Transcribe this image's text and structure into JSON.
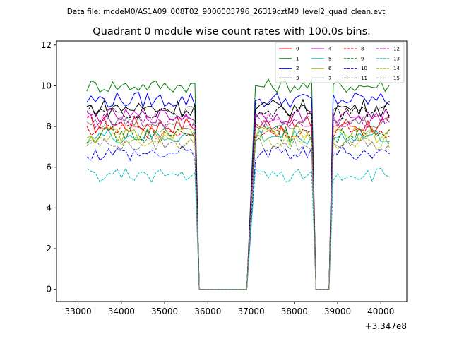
{
  "chart_data": {
    "type": "line",
    "suptitle": "Data file: modeM0/AS1A09_008T02_9000003796_26319cztM0_level2_quad_clean.evt",
    "title": "Quadrant 0 module wise count rates with 100.0s bins.",
    "xlabel": "",
    "ylabel": "",
    "x_offset_label": "+3.347e8",
    "xlim": [
      32500,
      40600
    ],
    "ylim": [
      -0.6,
      12.2
    ],
    "x_ticks": [
      33000,
      34000,
      35000,
      36000,
      37000,
      38000,
      39000,
      40000
    ],
    "x_tick_labels": [
      "33000",
      "34000",
      "35000",
      "36000",
      "37000",
      "38000",
      "39000",
      "40000"
    ],
    "y_ticks": [
      0,
      2,
      4,
      6,
      8,
      10,
      12
    ],
    "y_tick_labels": [
      "0",
      "2",
      "4",
      "6",
      "8",
      "10",
      "12"
    ],
    "legend_position": "top-right",
    "legend_columns": 4,
    "grid": false,
    "segments": [
      {
        "x_start": 33200,
        "step": 100,
        "count": 26
      },
      {
        "x_start": 35800,
        "step": 100,
        "count": 12
      },
      {
        "x_start": 37100,
        "step": 100,
        "count": 14
      },
      {
        "x_start": 38500,
        "step": 100,
        "count": 4
      },
      {
        "x_start": 38900,
        "step": 100,
        "count": 14
      }
    ],
    "series": [
      {
        "name": "0",
        "color": "#ff0000",
        "dash": false,
        "base": 8.1,
        "amp": 0.45
      },
      {
        "name": "1",
        "color": "#008000",
        "dash": false,
        "base": 10.0,
        "amp": 0.35
      },
      {
        "name": "2",
        "color": "#0000ff",
        "dash": false,
        "base": 9.3,
        "amp": 0.4
      },
      {
        "name": "3",
        "color": "#000000",
        "dash": false,
        "base": 8.9,
        "amp": 0.45
      },
      {
        "name": "4",
        "color": "#bf00bf",
        "dash": false,
        "base": 8.5,
        "amp": 0.35
      },
      {
        "name": "5",
        "color": "#00bfbf",
        "dash": false,
        "base": 7.5,
        "amp": 0.4
      },
      {
        "name": "6",
        "color": "#bfbf00",
        "dash": false,
        "base": 7.6,
        "amp": 0.4
      },
      {
        "name": "7",
        "color": "#808080",
        "dash": false,
        "base": 8.2,
        "amp": 0.35
      },
      {
        "name": "8",
        "color": "#ff0000",
        "dash": true,
        "base": 7.8,
        "amp": 0.4
      },
      {
        "name": "9",
        "color": "#008000",
        "dash": true,
        "base": 7.6,
        "amp": 0.4
      },
      {
        "name": "10",
        "color": "#0000ff",
        "dash": true,
        "base": 6.7,
        "amp": 0.4
      },
      {
        "name": "11",
        "color": "#000000",
        "dash": true,
        "base": 8.7,
        "amp": 0.35
      },
      {
        "name": "12",
        "color": "#bf00bf",
        "dash": true,
        "base": 8.3,
        "amp": 0.35
      },
      {
        "name": "13",
        "color": "#00bfbf",
        "dash": true,
        "base": 5.6,
        "amp": 0.35
      },
      {
        "name": "14",
        "color": "#bfbf00",
        "dash": true,
        "base": 7.3,
        "amp": 0.4
      },
      {
        "name": "15",
        "color": "#808080",
        "dash": true,
        "base": 7.1,
        "amp": 0.35
      }
    ],
    "gap_value": 0
  }
}
